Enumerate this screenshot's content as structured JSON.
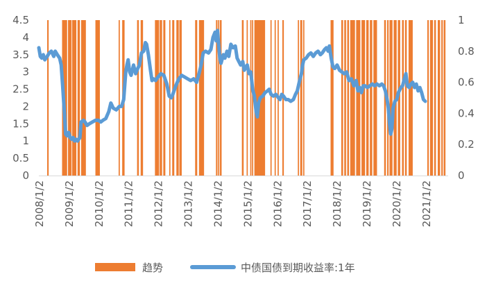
{
  "chart_data": {
    "type": "bar+line",
    "title": "",
    "x_tick_labels": [
      "2008/1/2",
      "2009/1/2",
      "2010/1/2",
      "2011/1/2",
      "2012/1/2",
      "2013/1/2",
      "2014/1/2",
      "2015/1/2",
      "2016/1/2",
      "2017/1/2",
      "2018/1/2",
      "2019/1/2",
      "2020/1/2",
      "2021/1/2"
    ],
    "x_range": [
      2008.0,
      2021.75
    ],
    "y_left": {
      "range": [
        0,
        4.5
      ],
      "ticks": [
        "0",
        "0.5",
        "1",
        "1.5",
        "2",
        "2.5",
        "3",
        "3.5",
        "4",
        "4.5"
      ]
    },
    "y_right": {
      "range": [
        0,
        1
      ],
      "ticks": [
        "0",
        "0.2",
        "0.4",
        "0.6",
        "0.8",
        "1"
      ]
    },
    "grid": false,
    "legend_position": "bottom",
    "series": [
      {
        "name": "趋势",
        "type": "bar",
        "axis": "right",
        "color": "#ED7D31",
        "description_intervals_value_1": [
          [
            2008.28,
            2008.33
          ],
          [
            2008.78,
            2008.95
          ],
          [
            2008.98,
            2009.1
          ],
          [
            2009.12,
            2009.26
          ],
          [
            2009.3,
            2009.38
          ],
          [
            2009.42,
            2009.58
          ],
          [
            2009.9,
            2010.05
          ],
          [
            2010.68,
            2010.72
          ],
          [
            2010.8,
            2010.88
          ],
          [
            2011.3,
            2011.36
          ],
          [
            2011.42,
            2011.5
          ],
          [
            2011.9,
            2012.04
          ],
          [
            2012.06,
            2012.14
          ],
          [
            2012.18,
            2012.25
          ],
          [
            2012.38,
            2012.42
          ],
          [
            2012.48,
            2012.55
          ],
          [
            2012.62,
            2012.7
          ],
          [
            2012.72,
            2012.8
          ],
          [
            2013.25,
            2013.32
          ],
          [
            2013.38,
            2013.55
          ],
          [
            2013.95,
            2014.0
          ],
          [
            2014.02,
            2014.06
          ],
          [
            2014.08,
            2014.14
          ],
          [
            2014.82,
            2014.88
          ],
          [
            2014.98,
            2015.02
          ],
          [
            2015.1,
            2015.14
          ],
          [
            2015.16,
            2015.2
          ],
          [
            2015.24,
            2015.6
          ],
          [
            2015.78,
            2015.82
          ],
          [
            2015.92,
            2015.96
          ],
          [
            2016.02,
            2016.06
          ],
          [
            2016.18,
            2016.23
          ],
          [
            2016.7,
            2016.74
          ],
          [
            2016.78,
            2016.85
          ],
          [
            2016.88,
            2016.92
          ],
          [
            2017.8,
            2017.9
          ],
          [
            2018.16,
            2018.22
          ],
          [
            2018.26,
            2018.32
          ],
          [
            2018.36,
            2018.42
          ],
          [
            2018.46,
            2018.62
          ],
          [
            2018.66,
            2018.8
          ],
          [
            2018.84,
            2018.96
          ],
          [
            2019.0,
            2019.08
          ],
          [
            2019.12,
            2019.2
          ],
          [
            2019.24,
            2019.36
          ],
          [
            2019.6,
            2019.66
          ],
          [
            2019.7,
            2019.75
          ],
          [
            2019.78,
            2019.88
          ],
          [
            2019.92,
            2020.02
          ],
          [
            2020.06,
            2020.14
          ],
          [
            2020.2,
            2020.26
          ],
          [
            2020.3,
            2020.36
          ],
          [
            2020.42,
            2020.56
          ],
          [
            2021.05,
            2021.1
          ],
          [
            2021.14,
            2021.24
          ],
          [
            2021.28,
            2021.34
          ],
          [
            2021.4,
            2021.48
          ],
          [
            2021.52,
            2021.57
          ],
          [
            2021.6,
            2021.66
          ]
        ]
      },
      {
        "name": "中债国债到期收益率:1年",
        "type": "line",
        "axis": "left",
        "color": "#5B9BD5",
        "points": [
          [
            2008.0,
            3.7
          ],
          [
            2008.05,
            3.45
          ],
          [
            2008.1,
            3.4
          ],
          [
            2008.15,
            3.5
          ],
          [
            2008.2,
            3.35
          ],
          [
            2008.28,
            3.45
          ],
          [
            2008.35,
            3.55
          ],
          [
            2008.42,
            3.6
          ],
          [
            2008.5,
            3.45
          ],
          [
            2008.55,
            3.6
          ],
          [
            2008.62,
            3.5
          ],
          [
            2008.7,
            3.4
          ],
          [
            2008.75,
            3.2
          ],
          [
            2008.8,
            2.6
          ],
          [
            2008.86,
            1.8
          ],
          [
            2008.9,
            1.2
          ],
          [
            2008.95,
            1.15
          ],
          [
            2009.0,
            1.25
          ],
          [
            2009.05,
            1.1
          ],
          [
            2009.1,
            1.05
          ],
          [
            2009.15,
            1.1
          ],
          [
            2009.2,
            1.0
          ],
          [
            2009.25,
            1.05
          ],
          [
            2009.3,
            1.0
          ],
          [
            2009.38,
            1.1
          ],
          [
            2009.42,
            1.55
          ],
          [
            2009.5,
            1.6
          ],
          [
            2009.55,
            1.55
          ],
          [
            2009.62,
            1.45
          ],
          [
            2009.7,
            1.5
          ],
          [
            2009.8,
            1.55
          ],
          [
            2009.9,
            1.6
          ],
          [
            2010.0,
            1.6
          ],
          [
            2010.08,
            1.55
          ],
          [
            2010.15,
            1.6
          ],
          [
            2010.25,
            1.65
          ],
          [
            2010.35,
            1.85
          ],
          [
            2010.42,
            2.1
          ],
          [
            2010.5,
            1.95
          ],
          [
            2010.6,
            1.9
          ],
          [
            2010.7,
            2.0
          ],
          [
            2010.78,
            2.0
          ],
          [
            2010.85,
            2.2
          ],
          [
            2010.92,
            3.0
          ],
          [
            2010.96,
            3.2
          ],
          [
            2011.0,
            3.35
          ],
          [
            2011.05,
            3.0
          ],
          [
            2011.1,
            2.9
          ],
          [
            2011.18,
            3.2
          ],
          [
            2011.25,
            2.95
          ],
          [
            2011.32,
            3.1
          ],
          [
            2011.38,
            3.2
          ],
          [
            2011.45,
            3.55
          ],
          [
            2011.52,
            3.6
          ],
          [
            2011.58,
            3.85
          ],
          [
            2011.62,
            3.8
          ],
          [
            2011.68,
            3.5
          ],
          [
            2011.75,
            3.05
          ],
          [
            2011.8,
            2.75
          ],
          [
            2011.85,
            2.8
          ],
          [
            2011.92,
            2.75
          ],
          [
            2012.0,
            2.85
          ],
          [
            2012.1,
            2.95
          ],
          [
            2012.2,
            2.9
          ],
          [
            2012.3,
            2.65
          ],
          [
            2012.38,
            2.3
          ],
          [
            2012.45,
            2.25
          ],
          [
            2012.5,
            2.35
          ],
          [
            2012.6,
            2.6
          ],
          [
            2012.7,
            2.8
          ],
          [
            2012.8,
            2.9
          ],
          [
            2012.9,
            2.85
          ],
          [
            2013.0,
            2.8
          ],
          [
            2013.1,
            2.75
          ],
          [
            2013.2,
            2.8
          ],
          [
            2013.3,
            2.7
          ],
          [
            2013.38,
            2.95
          ],
          [
            2013.45,
            3.2
          ],
          [
            2013.52,
            3.55
          ],
          [
            2013.6,
            3.6
          ],
          [
            2013.7,
            3.55
          ],
          [
            2013.78,
            3.65
          ],
          [
            2013.85,
            4.0
          ],
          [
            2013.92,
            4.15
          ],
          [
            2013.96,
            3.9
          ],
          [
            2014.0,
            4.2
          ],
          [
            2014.03,
            3.9
          ],
          [
            2014.08,
            3.4
          ],
          [
            2014.12,
            3.25
          ],
          [
            2014.2,
            3.5
          ],
          [
            2014.25,
            3.4
          ],
          [
            2014.32,
            3.6
          ],
          [
            2014.38,
            3.45
          ],
          [
            2014.45,
            3.8
          ],
          [
            2014.52,
            3.7
          ],
          [
            2014.6,
            3.75
          ],
          [
            2014.66,
            3.4
          ],
          [
            2014.72,
            3.3
          ],
          [
            2014.78,
            3.2
          ],
          [
            2014.85,
            3.3
          ],
          [
            2014.9,
            3.05
          ],
          [
            2014.96,
            3.15
          ],
          [
            2015.0,
            3.2
          ],
          [
            2015.06,
            2.95
          ],
          [
            2015.12,
            3.0
          ],
          [
            2015.18,
            2.5
          ],
          [
            2015.24,
            2.3
          ],
          [
            2015.3,
            1.85
          ],
          [
            2015.34,
            1.7
          ],
          [
            2015.38,
            2.1
          ],
          [
            2015.44,
            2.25
          ],
          [
            2015.52,
            2.3
          ],
          [
            2015.6,
            2.4
          ],
          [
            2015.68,
            2.45
          ],
          [
            2015.74,
            2.5
          ],
          [
            2015.8,
            2.35
          ],
          [
            2015.88,
            2.3
          ],
          [
            2015.96,
            2.35
          ],
          [
            2016.05,
            2.25
          ],
          [
            2016.1,
            2.2
          ],
          [
            2016.16,
            2.35
          ],
          [
            2016.22,
            2.3
          ],
          [
            2016.3,
            2.2
          ],
          [
            2016.38,
            2.2
          ],
          [
            2016.46,
            2.15
          ],
          [
            2016.55,
            2.2
          ],
          [
            2016.62,
            2.35
          ],
          [
            2016.68,
            2.45
          ],
          [
            2016.76,
            2.75
          ],
          [
            2016.82,
            2.95
          ],
          [
            2016.86,
            3.2
          ],
          [
            2016.9,
            3.35
          ],
          [
            2016.98,
            3.4
          ],
          [
            2017.06,
            3.5
          ],
          [
            2017.14,
            3.55
          ],
          [
            2017.22,
            3.45
          ],
          [
            2017.3,
            3.55
          ],
          [
            2017.38,
            3.6
          ],
          [
            2017.46,
            3.5
          ],
          [
            2017.52,
            3.55
          ],
          [
            2017.6,
            3.65
          ],
          [
            2017.66,
            3.7
          ],
          [
            2017.72,
            3.6
          ],
          [
            2017.76,
            3.75
          ],
          [
            2017.82,
            3.4
          ],
          [
            2017.88,
            3.15
          ],
          [
            2017.94,
            3.1
          ],
          [
            2018.02,
            3.2
          ],
          [
            2018.1,
            3.05
          ],
          [
            2018.18,
            3.0
          ],
          [
            2018.26,
            2.95
          ],
          [
            2018.34,
            3.0
          ],
          [
            2018.42,
            2.75
          ],
          [
            2018.5,
            2.8
          ],
          [
            2018.58,
            2.6
          ],
          [
            2018.66,
            2.75
          ],
          [
            2018.72,
            2.45
          ],
          [
            2018.78,
            2.55
          ],
          [
            2018.84,
            2.4
          ],
          [
            2018.9,
            2.6
          ],
          [
            2018.96,
            2.6
          ],
          [
            2019.04,
            2.55
          ],
          [
            2019.12,
            2.6
          ],
          [
            2019.2,
            2.65
          ],
          [
            2019.28,
            2.6
          ],
          [
            2019.36,
            2.65
          ],
          [
            2019.44,
            2.6
          ],
          [
            2019.52,
            2.65
          ],
          [
            2019.58,
            2.6
          ],
          [
            2019.64,
            2.45
          ],
          [
            2019.7,
            2.2
          ],
          [
            2019.74,
            1.95
          ],
          [
            2019.78,
            1.5
          ],
          [
            2019.82,
            1.2
          ],
          [
            2019.86,
            1.35
          ],
          [
            2019.9,
            1.95
          ],
          [
            2019.96,
            2.15
          ],
          [
            2020.02,
            2.2
          ],
          [
            2020.08,
            2.4
          ],
          [
            2020.16,
            2.55
          ],
          [
            2020.22,
            2.6
          ],
          [
            2020.28,
            2.8
          ],
          [
            2020.33,
            2.95
          ],
          [
            2020.38,
            2.6
          ],
          [
            2020.44,
            2.55
          ],
          [
            2020.5,
            2.65
          ],
          [
            2020.56,
            2.7
          ],
          [
            2020.62,
            2.55
          ],
          [
            2020.68,
            2.65
          ],
          [
            2020.74,
            2.45
          ],
          [
            2020.8,
            2.55
          ],
          [
            2020.86,
            2.4
          ],
          [
            2020.92,
            2.2
          ],
          [
            2020.98,
            2.15
          ]
        ]
      }
    ]
  },
  "legend": {
    "items": [
      {
        "label": "趋势",
        "color": "#ED7D31"
      },
      {
        "label": "中债国债到期收益率:1年",
        "color": "#5B9BD5"
      }
    ]
  }
}
